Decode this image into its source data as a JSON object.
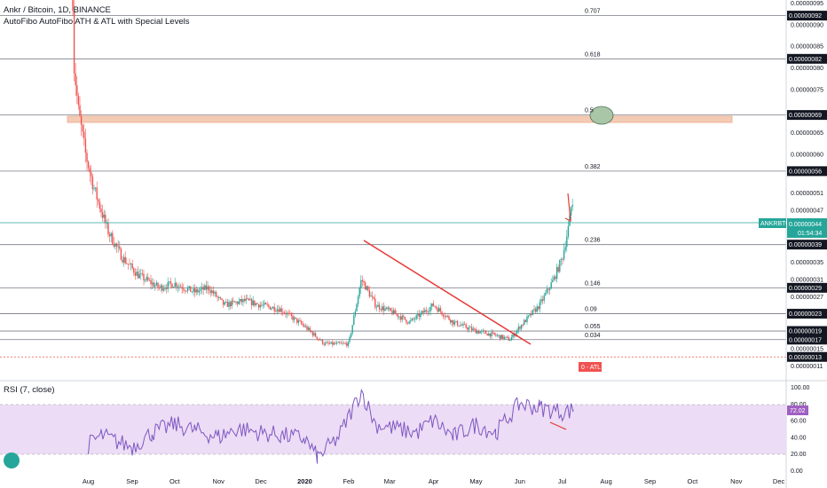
{
  "header": {
    "symbol_line": "Ankr / Bitcoin, 1D, BINANCE",
    "indicator_line": "AutoFibo AutoFibo ATH & ATL with Special Levels"
  },
  "rsi_panel": {
    "title": "RSI (7, close)",
    "value_label": "72.02"
  },
  "price_scale": {
    "ticks": [
      "0.00000095",
      "0.00000090",
      "0.00000085",
      "0.00000080",
      "0.00000075",
      "0.00000069",
      "0.00000065",
      "0.00000060",
      "0.00000051",
      "0.00000047",
      "0.00000035",
      "0.00000031",
      "0.00000027",
      "0.00000015",
      "0.00000011"
    ],
    "boxed_levels": [
      "0.00000092",
      "0.00000082",
      "0.00000069",
      "0.00000056",
      "0.00000039",
      "0.00000029",
      "0.00000023",
      "0.00000019",
      "0.00000017",
      "0.00000013"
    ],
    "current_symbol": "ANKRBTC",
    "current_price": "0.00000044",
    "countdown": "01:54:34"
  },
  "rsi_scale": {
    "ticks": [
      "100.00",
      "80.00",
      "60.00",
      "40.00",
      "20.00",
      "0.00"
    ]
  },
  "time_axis": [
    "Aug",
    "Sep",
    "Oct",
    "Nov",
    "Dec",
    "2020",
    "Feb",
    "Mar",
    "Apr",
    "May",
    "Jun",
    "Jul",
    "Aug",
    "Sep",
    "Oct",
    "Nov",
    "Dec"
  ],
  "fib_labels": [
    "0.707",
    "0.618",
    "0.5",
    "0.382",
    "0.236",
    "0.146",
    "0.09",
    "0.055",
    "0.034"
  ],
  "atl_label": "0 - ATL",
  "colors": {
    "up": "#26a69a",
    "down": "#ef5350",
    "trendline": "#e53935",
    "fib_line": "#787b86",
    "zone_fill": "#f4cbb4",
    "rsi_line": "#7e57c2",
    "rsi_band": "#ecdcf5",
    "current_price_bg": "#26a69a",
    "atl_bg": "#ef5350"
  },
  "chart_data": {
    "type": "candlestick",
    "axis": "price",
    "ylim": [
      1.1e-07,
      9.5e-07
    ],
    "fib_levels": [
      {
        "label": "0.707",
        "price": 9.2e-07
      },
      {
        "label": "0.618",
        "price": 8.2e-07
      },
      {
        "label": "0.5",
        "price": 6.9e-07
      },
      {
        "label": "0.382",
        "price": 5.6e-07
      },
      {
        "label": "0.236",
        "price": 3.9e-07
      },
      {
        "label": "0.146",
        "price": 2.9e-07
      },
      {
        "label": "0.09",
        "price": 2.3e-07
      },
      {
        "label": "0.055",
        "price": 1.9e-07
      },
      {
        "label": "0.034",
        "price": 1.7e-07
      },
      {
        "label": "0 - ATL",
        "price": 1.3e-07
      }
    ],
    "resistance_zone": [
      6.87e-07,
      6.95e-07
    ],
    "trendline": [
      {
        "date": "2020-02-10",
        "price": 3.8e-07
      },
      {
        "date": "2020-06-12",
        "price": 1.5e-07
      }
    ],
    "price_path": [
      {
        "date": "2019-07-21",
        "price": 9.6e-07
      },
      {
        "date": "2019-07-22",
        "price": 8e-07
      },
      {
        "date": "2019-07-25",
        "price": 7e-07
      },
      {
        "date": "2019-07-30",
        "price": 6e-07
      },
      {
        "date": "2019-08-05",
        "price": 5.2e-07
      },
      {
        "date": "2019-08-15",
        "price": 4.2e-07
      },
      {
        "date": "2019-08-25",
        "price": 3.6e-07
      },
      {
        "date": "2019-09-05",
        "price": 3.2e-07
      },
      {
        "date": "2019-09-20",
        "price": 2.9e-07
      },
      {
        "date": "2019-10-01",
        "price": 3e-07
      },
      {
        "date": "2019-10-15",
        "price": 2.8e-07
      },
      {
        "date": "2019-10-25",
        "price": 2.9e-07
      },
      {
        "date": "2019-11-05",
        "price": 2.5e-07
      },
      {
        "date": "2019-11-20",
        "price": 2.6e-07
      },
      {
        "date": "2019-12-01",
        "price": 2.5e-07
      },
      {
        "date": "2019-12-15",
        "price": 2.4e-07
      },
      {
        "date": "2020-01-01",
        "price": 2e-07
      },
      {
        "date": "2020-01-15",
        "price": 1.6e-07
      },
      {
        "date": "2020-02-01",
        "price": 1.6e-07
      },
      {
        "date": "2020-02-10",
        "price": 3.1e-07
      },
      {
        "date": "2020-02-20",
        "price": 2.5e-07
      },
      {
        "date": "2020-03-05",
        "price": 2.3e-07
      },
      {
        "date": "2020-03-15",
        "price": 2.1e-07
      },
      {
        "date": "2020-04-01",
        "price": 2.5e-07
      },
      {
        "date": "2020-04-15",
        "price": 2.1e-07
      },
      {
        "date": "2020-05-01",
        "price": 1.9e-07
      },
      {
        "date": "2020-05-15",
        "price": 1.8e-07
      },
      {
        "date": "2020-05-25",
        "price": 1.7e-07
      },
      {
        "date": "2020-06-01",
        "price": 2e-07
      },
      {
        "date": "2020-06-15",
        "price": 2.5e-07
      },
      {
        "date": "2020-06-25",
        "price": 3.1e-07
      },
      {
        "date": "2020-07-01",
        "price": 3.6e-07
      },
      {
        "date": "2020-07-06",
        "price": 4.4e-07
      },
      {
        "date": "2020-07-08",
        "price": 5e-07
      },
      {
        "date": "2020-07-09",
        "price": 4.4e-07
      }
    ],
    "rsi": {
      "name": "RSI (7, close)",
      "ylim": [
        0,
        100
      ],
      "bands": [
        20,
        80
      ],
      "last": 72.02,
      "path": [
        {
          "date": "2019-08-01",
          "rsi": 30
        },
        {
          "date": "2019-08-10",
          "rsi": 42
        },
        {
          "date": "2019-08-20",
          "rsi": 35
        },
        {
          "date": "2019-09-01",
          "rsi": 28
        },
        {
          "date": "2019-09-15",
          "rsi": 45
        },
        {
          "date": "2019-10-01",
          "rsi": 55
        },
        {
          "date": "2019-10-15",
          "rsi": 48
        },
        {
          "date": "2019-11-01",
          "rsi": 40
        },
        {
          "date": "2019-11-15",
          "rsi": 50
        },
        {
          "date": "2019-12-01",
          "rsi": 45
        },
        {
          "date": "2019-12-15",
          "rsi": 42
        },
        {
          "date": "2020-01-01",
          "rsi": 38
        },
        {
          "date": "2020-01-10",
          "rsi": 15
        },
        {
          "date": "2020-01-25",
          "rsi": 40
        },
        {
          "date": "2020-02-10",
          "rsi": 95
        },
        {
          "date": "2020-02-20",
          "rsi": 55
        },
        {
          "date": "2020-03-05",
          "rsi": 50
        },
        {
          "date": "2020-03-20",
          "rsi": 45
        },
        {
          "date": "2020-04-01",
          "rsi": 60
        },
        {
          "date": "2020-04-15",
          "rsi": 40
        },
        {
          "date": "2020-05-01",
          "rsi": 55
        },
        {
          "date": "2020-05-15",
          "rsi": 45
        },
        {
          "date": "2020-06-01",
          "rsi": 80
        },
        {
          "date": "2020-06-15",
          "rsi": 75
        },
        {
          "date": "2020-07-01",
          "rsi": 70
        },
        {
          "date": "2020-07-09",
          "rsi": 72
        }
      ]
    }
  }
}
